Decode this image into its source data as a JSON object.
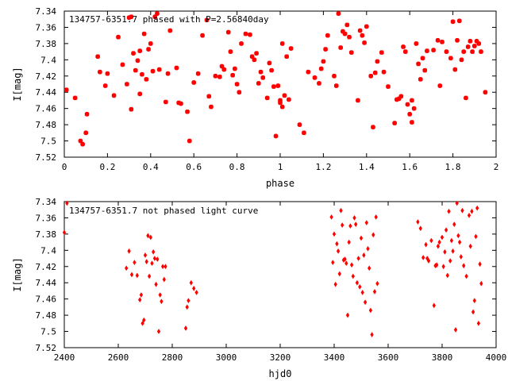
{
  "chart_data": [
    {
      "type": "scatter",
      "title": "134757-6351.7 phased with P=2.56840day",
      "xlabel": "phase",
      "ylabel": "I[mag]",
      "xlim": [
        0,
        2
      ],
      "ylim": [
        7.52,
        7.34
      ],
      "y_inverted": true,
      "xticks": [
        "0",
        "0.2",
        "0.4",
        "0.6",
        "0.8",
        "1",
        "1.2",
        "1.4",
        "1.6",
        "1.8",
        "2"
      ],
      "yticks": [
        "7.34",
        "7.36",
        "7.38",
        "7.4",
        "7.42",
        "7.44",
        "7.46",
        "7.48",
        "7.5",
        "7.52"
      ],
      "grid": false,
      "marker_color": "#ff0000",
      "series": [
        {
          "points": [
            [
              0.01,
              7.437
            ],
            [
              0.05,
              7.447
            ],
            [
              0.075,
              7.5
            ],
            [
              0.085,
              7.504
            ],
            [
              0.1,
              7.49
            ],
            [
              0.105,
              7.467
            ],
            [
              0.155,
              7.396
            ],
            [
              0.165,
              7.415
            ],
            [
              0.19,
              7.432
            ],
            [
              0.2,
              7.417
            ],
            [
              0.23,
              7.444
            ],
            [
              0.25,
              7.372
            ],
            [
              0.27,
              7.406
            ],
            [
              0.29,
              7.43
            ],
            [
              0.3,
              7.348
            ],
            [
              0.31,
              7.347
            ],
            [
              0.31,
              7.461
            ],
            [
              0.32,
              7.392
            ],
            [
              0.33,
              7.413
            ],
            [
              0.34,
              7.401
            ],
            [
              0.35,
              7.442
            ],
            [
              0.35,
              7.389
            ],
            [
              0.36,
              7.418
            ],
            [
              0.37,
              7.368
            ],
            [
              0.38,
              7.424
            ],
            [
              0.39,
              7.387
            ],
            [
              0.4,
              7.38
            ],
            [
              0.41,
              7.414
            ],
            [
              0.42,
              7.347
            ],
            [
              0.43,
              7.343
            ],
            [
              0.44,
              7.412
            ],
            [
              0.47,
              7.452
            ],
            [
              0.48,
              7.417
            ],
            [
              0.49,
              7.364
            ],
            [
              0.52,
              7.41
            ],
            [
              0.53,
              7.453
            ],
            [
              0.54,
              7.454
            ],
            [
              0.57,
              7.464
            ],
            [
              0.58,
              7.5
            ],
            [
              0.6,
              7.428
            ],
            [
              0.62,
              7.417
            ],
            [
              0.64,
              7.37
            ],
            [
              0.66,
              7.351
            ],
            [
              0.67,
              7.445
            ],
            [
              0.68,
              7.458
            ],
            [
              0.7,
              7.42
            ],
            [
              0.72,
              7.421
            ],
            [
              0.73,
              7.408
            ],
            [
              0.74,
              7.412
            ],
            [
              0.76,
              7.366
            ],
            [
              0.77,
              7.39
            ],
            [
              0.78,
              7.419
            ],
            [
              0.79,
              7.411
            ],
            [
              0.8,
              7.43
            ],
            [
              0.81,
              7.44
            ],
            [
              0.82,
              7.38
            ],
            [
              0.84,
              7.368
            ],
            [
              0.86,
              7.369
            ],
            [
              0.87,
              7.396
            ],
            [
              0.88,
              7.4
            ],
            [
              0.89,
              7.392
            ],
            [
              0.9,
              7.429
            ],
            [
              0.91,
              7.415
            ],
            [
              0.92,
              7.422
            ],
            [
              0.94,
              7.447
            ],
            [
              0.95,
              7.404
            ],
            [
              0.96,
              7.413
            ],
            [
              0.97,
              7.433
            ],
            [
              0.98,
              7.494
            ],
            [
              0.99,
              7.432
            ],
            [
              1.0,
              7.453
            ],
            [
              1.0,
              7.45
            ],
            [
              1.01,
              7.458
            ],
            [
              1.01,
              7.38
            ],
            [
              1.02,
              7.444
            ],
            [
              1.03,
              7.396
            ],
            [
              1.04,
              7.449
            ],
            [
              1.05,
              7.386
            ],
            [
              1.09,
              7.48
            ],
            [
              1.11,
              7.49
            ],
            [
              1.13,
              7.415
            ],
            [
              1.16,
              7.422
            ],
            [
              1.18,
              7.429
            ],
            [
              1.19,
              7.411
            ],
            [
              1.2,
              7.402
            ],
            [
              1.21,
              7.387
            ],
            [
              1.22,
              7.37
            ],
            [
              1.25,
              7.42
            ],
            [
              1.26,
              7.432
            ],
            [
              1.27,
              7.343
            ],
            [
              1.28,
              7.385
            ],
            [
              1.29,
              7.365
            ],
            [
              1.3,
              7.368
            ],
            [
              1.31,
              7.357
            ],
            [
              1.32,
              7.372
            ],
            [
              1.33,
              7.391
            ],
            [
              1.36,
              7.45
            ],
            [
              1.37,
              7.364
            ],
            [
              1.38,
              7.37
            ],
            [
              1.39,
              7.379
            ],
            [
              1.4,
              7.359
            ],
            [
              1.42,
              7.42
            ],
            [
              1.43,
              7.483
            ],
            [
              1.44,
              7.416
            ],
            [
              1.45,
              7.402
            ],
            [
              1.47,
              7.391
            ],
            [
              1.48,
              7.415
            ],
            [
              1.5,
              7.433
            ],
            [
              1.53,
              7.478
            ],
            [
              1.54,
              7.449
            ],
            [
              1.55,
              7.448
            ],
            [
              1.56,
              7.445
            ],
            [
              1.57,
              7.384
            ],
            [
              1.58,
              7.39
            ],
            [
              1.59,
              7.455
            ],
            [
              1.6,
              7.467
            ],
            [
              1.61,
              7.477
            ],
            [
              1.61,
              7.45
            ],
            [
              1.62,
              7.46
            ],
            [
              1.63,
              7.38
            ],
            [
              1.64,
              7.405
            ],
            [
              1.65,
              7.424
            ],
            [
              1.66,
              7.398
            ],
            [
              1.67,
              7.413
            ],
            [
              1.68,
              7.389
            ],
            [
              1.71,
              7.388
            ],
            [
              1.73,
              7.376
            ],
            [
              1.74,
              7.432
            ],
            [
              1.75,
              7.378
            ],
            [
              1.77,
              7.39
            ],
            [
              1.79,
              7.398
            ],
            [
              1.8,
              7.353
            ],
            [
              1.81,
              7.412
            ],
            [
              1.82,
              7.376
            ],
            [
              1.83,
              7.352
            ],
            [
              1.84,
              7.4
            ],
            [
              1.85,
              7.39
            ],
            [
              1.86,
              7.447
            ],
            [
              1.87,
              7.384
            ],
            [
              1.88,
              7.377
            ],
            [
              1.89,
              7.39
            ],
            [
              1.9,
              7.383
            ],
            [
              1.91,
              7.377
            ],
            [
              1.92,
              7.38
            ],
            [
              1.93,
              7.39
            ],
            [
              1.95,
              7.44
            ]
          ]
        }
      ]
    },
    {
      "type": "scatter",
      "title": "134757-6351.7 not phased light curve",
      "xlabel": "hjd0",
      "ylabel": "I[mag]",
      "xlim": [
        2400,
        4000
      ],
      "ylim": [
        7.52,
        7.34
      ],
      "y_inverted": true,
      "xticks": [
        "2400",
        "2600",
        "2800",
        "3000",
        "3200",
        "3400",
        "3600",
        "3800",
        "4000"
      ],
      "yticks": [
        "7.34",
        "7.36",
        "7.38",
        "7.4",
        "7.42",
        "7.44",
        "7.46",
        "7.48",
        "7.5",
        "7.52"
      ],
      "grid": false,
      "marker_color": "#ff0000",
      "series": [
        {
          "points": [
            [
              2400,
              7.378
            ],
            [
              2410,
              7.342
            ],
            [
              2630,
              7.422
            ],
            [
              2640,
              7.401
            ],
            [
              2650,
              7.43
            ],
            [
              2660,
              7.415
            ],
            [
              2670,
              7.431
            ],
            [
              2680,
              7.461
            ],
            [
              2685,
              7.455
            ],
            [
              2690,
              7.49
            ],
            [
              2695,
              7.486
            ],
            [
              2700,
              7.406
            ],
            [
              2705,
              7.414
            ],
            [
              2710,
              7.382
            ],
            [
              2715,
              7.432
            ],
            [
              2720,
              7.384
            ],
            [
              2725,
              7.416
            ],
            [
              2730,
              7.402
            ],
            [
              2735,
              7.41
            ],
            [
              2740,
              7.442
            ],
            [
              2745,
              7.411
            ],
            [
              2750,
              7.5
            ],
            [
              2755,
              7.455
            ],
            [
              2760,
              7.463
            ],
            [
              2765,
              7.42
            ],
            [
              2770,
              7.436
            ],
            [
              2775,
              7.42
            ],
            [
              2850,
              7.496
            ],
            [
              2855,
              7.47
            ],
            [
              2860,
              7.462
            ],
            [
              2870,
              7.44
            ],
            [
              2880,
              7.447
            ],
            [
              2890,
              7.452
            ],
            [
              3390,
              7.359
            ],
            [
              3395,
              7.415
            ],
            [
              3400,
              7.38
            ],
            [
              3405,
              7.442
            ],
            [
              3410,
              7.392
            ],
            [
              3415,
              7.401
            ],
            [
              3420,
              7.429
            ],
            [
              3425,
              7.351
            ],
            [
              3430,
              7.369
            ],
            [
              3435,
              7.412
            ],
            [
              3440,
              7.411
            ],
            [
              3445,
              7.416
            ],
            [
              3450,
              7.48
            ],
            [
              3455,
              7.39
            ],
            [
              3460,
              7.37
            ],
            [
              3465,
              7.418
            ],
            [
              3470,
              7.432
            ],
            [
              3475,
              7.36
            ],
            [
              3480,
              7.368
            ],
            [
              3485,
              7.44
            ],
            [
              3490,
              7.41
            ],
            [
              3495,
              7.445
            ],
            [
              3500,
              7.385
            ],
            [
              3505,
              7.452
            ],
            [
              3510,
              7.406
            ],
            [
              3515,
              7.464
            ],
            [
              3520,
              7.366
            ],
            [
              3525,
              7.398
            ],
            [
              3530,
              7.422
            ],
            [
              3535,
              7.474
            ],
            [
              3540,
              7.504
            ],
            [
              3545,
              7.381
            ],
            [
              3550,
              7.451
            ],
            [
              3555,
              7.359
            ],
            [
              3560,
              7.441
            ],
            [
              3710,
              7.365
            ],
            [
              3720,
              7.373
            ],
            [
              3730,
              7.409
            ],
            [
              3740,
              7.393
            ],
            [
              3745,
              7.41
            ],
            [
              3750,
              7.413
            ],
            [
              3760,
              7.388
            ],
            [
              3770,
              7.468
            ],
            [
              3775,
              7.419
            ],
            [
              3780,
              7.418
            ],
            [
              3785,
              7.395
            ],
            [
              3790,
              7.39
            ],
            [
              3800,
              7.384
            ],
            [
              3805,
              7.42
            ],
            [
              3810,
              7.402
            ],
            [
              3815,
              7.375
            ],
            [
              3820,
              7.431
            ],
            [
              3825,
              7.352
            ],
            [
              3830,
              7.413
            ],
            [
              3835,
              7.388
            ],
            [
              3840,
              7.401
            ],
            [
              3845,
              7.368
            ],
            [
              3850,
              7.498
            ],
            [
              3855,
              7.342
            ],
            [
              3860,
              7.382
            ],
            [
              3865,
              7.39
            ],
            [
              3870,
              7.408
            ],
            [
              3875,
              7.351
            ],
            [
              3880,
              7.419
            ],
            [
              3890,
              7.432
            ],
            [
              3900,
              7.357
            ],
            [
              3905,
              7.395
            ],
            [
              3910,
              7.352
            ],
            [
              3915,
              7.476
            ],
            [
              3920,
              7.462
            ],
            [
              3925,
              7.383
            ],
            [
              3930,
              7.348
            ],
            [
              3935,
              7.49
            ],
            [
              3940,
              7.417
            ],
            [
              3945,
              7.441
            ]
          ]
        }
      ]
    }
  ]
}
